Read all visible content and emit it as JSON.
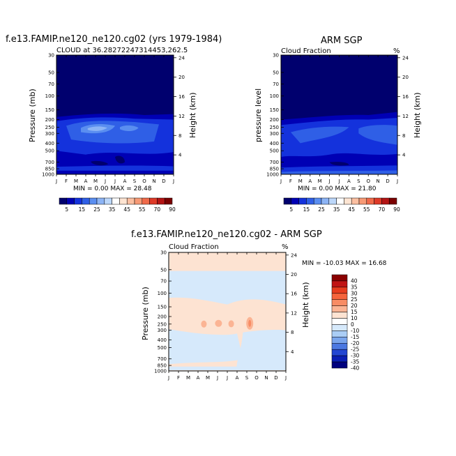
{
  "panels": {
    "top_left": {
      "title": "f.e13.FAMIP.ne120_ne120.cg02 (yrs 1979-1984)",
      "subtitle": "CLOUD at 36.28272247314453,262.5",
      "stats": "MIN =    0.00 MAX =   28.48"
    },
    "top_right": {
      "title": "ARM SGP",
      "subtitle": "Cloud Fraction",
      "unit": "%",
      "stats": "MIN =    0.00 MAX =   21.80"
    },
    "bottom": {
      "title": "f.e13.FAMIP.ne120_ne120.cg02 - ARM SGP",
      "subtitle": "Cloud Fraction",
      "unit": "%",
      "stats": "MIN = -10.03 MAX =   16.68"
    }
  },
  "axes": {
    "months": [
      "J",
      "F",
      "M",
      "A",
      "M",
      "J",
      "J",
      "A",
      "S",
      "O",
      "N",
      "D",
      "J"
    ],
    "pressure_ticks": [
      "30",
      "50",
      "70",
      "100",
      "150",
      "200",
      "250",
      "300",
      "400",
      "500",
      "700",
      "850",
      "1000"
    ],
    "height_ticks": [
      "24",
      "20",
      "16",
      "12",
      "8",
      "4"
    ],
    "left_label_tl": "Pressure (mb)",
    "left_label_tr": "pressure level",
    "left_label_b": "Pressure (mb)",
    "right_label": "Height (km)"
  },
  "colorbar_top": {
    "labels": [
      "5",
      "15",
      "25",
      "35",
      "45",
      "55",
      "70",
      "90"
    ],
    "colors": [
      "#00006e",
      "#0000b4",
      "#1432dc",
      "#2f5fe6",
      "#5a8ef0",
      "#8cb4f5",
      "#bcd7fa",
      "#ffffff",
      "#fde4d2",
      "#fbbfa1",
      "#f79a76",
      "#f06a4a",
      "#de3a28",
      "#b41414",
      "#7a0000"
    ]
  },
  "colorbar_bottom": {
    "labels": [
      "40",
      "35",
      "30",
      "25",
      "20",
      "15",
      "10",
      "0",
      "-10",
      "-15",
      "-20",
      "-25",
      "-30",
      "-35",
      "-40"
    ],
    "colors": [
      "#8a0000",
      "#c01414",
      "#e63c1e",
      "#f5643c",
      "#f88c64",
      "#fbb494",
      "#fde3d2",
      "#ffffff",
      "#d6e9fb",
      "#aacdf5",
      "#7aa5ec",
      "#4b78e1",
      "#2346d2",
      "#0a1eb4",
      "#00007e"
    ]
  },
  "chart_data": [
    {
      "type": "heatmap",
      "title": "f.e13.FAMIP.ne120_ne120.cg02 (yrs 1979-1984)",
      "x": [
        "J",
        "F",
        "M",
        "A",
        "M",
        "J",
        "J",
        "A",
        "S",
        "O",
        "N",
        "D",
        "J"
      ],
      "y_pressure": [
        30,
        50,
        70,
        100,
        150,
        200,
        250,
        300,
        400,
        500,
        700,
        850,
        1000
      ],
      "min": 0.0,
      "max": 28.48,
      "approx_values_pct": {
        "30-150mb": 0,
        "200mb": 12,
        "250mb": [
          15,
          18,
          22,
          25,
          27,
          24,
          18,
          20,
          22,
          15,
          12,
          14,
          15
        ],
        "300mb": [
          14,
          16,
          20,
          24,
          26,
          22,
          18,
          19,
          20,
          16,
          13,
          14,
          14
        ],
        "400mb": 12,
        "500mb": 10,
        "700mb": [
          10,
          10,
          10,
          8,
          5,
          2,
          2,
          8,
          3,
          10,
          10,
          10,
          10
        ],
        "850mb": 12,
        "1000mb": 8
      }
    },
    {
      "type": "heatmap",
      "title": "ARM SGP",
      "x": [
        "J",
        "F",
        "M",
        "A",
        "M",
        "J",
        "J",
        "A",
        "S",
        "O",
        "N",
        "D",
        "J"
      ],
      "y_pressure": [
        30,
        50,
        70,
        100,
        150,
        200,
        250,
        300,
        400,
        500,
        700,
        850,
        1000
      ],
      "min": 0.0,
      "max": 21.8,
      "approx_values_pct": {
        "30-150mb": 0,
        "200mb": 8,
        "250mb": 12,
        "300mb": 14,
        "400mb": 12,
        "500mb": 10,
        "700mb": 8,
        "850mb": 12,
        "1000mb": 15
      }
    },
    {
      "type": "heatmap",
      "title": "f.e13.FAMIP.ne120_ne120.cg02 - ARM SGP",
      "x": [
        "J",
        "F",
        "M",
        "A",
        "M",
        "J",
        "J",
        "A",
        "S",
        "O",
        "N",
        "D",
        "J"
      ],
      "y_pressure": [
        30,
        50,
        70,
        100,
        150,
        200,
        250,
        300,
        400,
        500,
        700,
        850,
        1000
      ],
      "min": -10.03,
      "max": 16.68,
      "approx_values_pct": {
        "30-50mb": 0,
        "50-100mb": -3,
        "150-300mb": [
          3,
          3,
          3,
          3,
          10,
          5,
          10,
          5,
          14,
          3,
          3,
          3,
          3
        ],
        "400-850mb": -3,
        "1000mb": 0
      }
    }
  ]
}
